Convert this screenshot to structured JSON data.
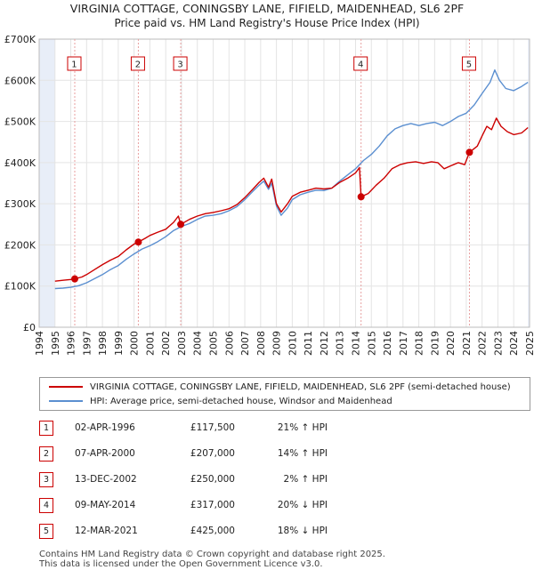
{
  "title_line1": "VIRGINIA COTTAGE, CONINGSBY LANE, FIFIELD, MAIDENHEAD, SL6 2PF",
  "title_line2": "Price paid vs. HM Land Registry's House Price Index (HPI)",
  "chart_data": {
    "type": "line",
    "title": "VIRGINIA COTTAGE, CONINGSBY LANE, FIFIELD, MAIDENHEAD, SL6 2PF",
    "subtitle": "Price paid vs. HM Land Registry's House Price Index (HPI)",
    "xlim": [
      1994,
      2025
    ],
    "ylim": [
      0,
      700000
    ],
    "ytick_labels": [
      "£0",
      "£100K",
      "£200K",
      "£300K",
      "£400K",
      "£500K",
      "£600K",
      "£700K"
    ],
    "yticks": [
      0,
      100000,
      200000,
      300000,
      400000,
      500000,
      600000,
      700000
    ],
    "xtick_labels": [
      "1994",
      "1995",
      "1996",
      "1997",
      "1998",
      "1999",
      "2000",
      "2001",
      "2002",
      "2003",
      "2004",
      "2005",
      "2006",
      "2007",
      "2008",
      "2009",
      "2010",
      "2011",
      "2012",
      "2013",
      "2014",
      "2015",
      "2016",
      "2017",
      "2018",
      "2019",
      "2020",
      "2021",
      "2022",
      "2023",
      "2024",
      "2025"
    ],
    "colors": {
      "property": "#cc0000",
      "hpi": "#5b8fd0",
      "marker_line": "#e8a0a0",
      "shade": "#e8eef8"
    },
    "series": [
      {
        "name": "VIRGINIA COTTAGE, CONINGSBY LANE, FIFIELD, MAIDENHEAD, SL6 2PF (semi-detached house)",
        "points": [
          [
            1995.0,
            112000
          ],
          [
            1995.5,
            114000
          ],
          [
            1996.0,
            116000
          ],
          [
            1996.25,
            117500
          ],
          [
            1996.7,
            122000
          ],
          [
            1997.0,
            128000
          ],
          [
            1997.5,
            140000
          ],
          [
            1998.0,
            152000
          ],
          [
            1998.5,
            163000
          ],
          [
            1999.0,
            172000
          ],
          [
            1999.5,
            188000
          ],
          [
            2000.0,
            202000
          ],
          [
            2000.27,
            207000
          ],
          [
            2000.7,
            216000
          ],
          [
            2001.0,
            223000
          ],
          [
            2001.5,
            231000
          ],
          [
            2002.0,
            238000
          ],
          [
            2002.5,
            255000
          ],
          [
            2002.8,
            270000
          ],
          [
            2002.95,
            250000
          ],
          [
            2003.5,
            262000
          ],
          [
            2004.0,
            270000
          ],
          [
            2004.5,
            276000
          ],
          [
            2005.0,
            279000
          ],
          [
            2005.5,
            283000
          ],
          [
            2006.0,
            288000
          ],
          [
            2006.5,
            298000
          ],
          [
            2007.0,
            315000
          ],
          [
            2007.5,
            335000
          ],
          [
            2007.9,
            352000
          ],
          [
            2008.2,
            362000
          ],
          [
            2008.5,
            340000
          ],
          [
            2008.7,
            360000
          ],
          [
            2009.0,
            300000
          ],
          [
            2009.3,
            280000
          ],
          [
            2009.7,
            300000
          ],
          [
            2010.0,
            318000
          ],
          [
            2010.5,
            328000
          ],
          [
            2011.0,
            333000
          ],
          [
            2011.5,
            338000
          ],
          [
            2012.0,
            336000
          ],
          [
            2012.5,
            338000
          ],
          [
            2013.0,
            352000
          ],
          [
            2013.5,
            362000
          ],
          [
            2014.0,
            375000
          ],
          [
            2014.25,
            388000
          ],
          [
            2014.35,
            317000
          ],
          [
            2014.8,
            325000
          ],
          [
            2015.3,
            345000
          ],
          [
            2015.8,
            362000
          ],
          [
            2016.3,
            385000
          ],
          [
            2016.8,
            395000
          ],
          [
            2017.3,
            400000
          ],
          [
            2017.8,
            402000
          ],
          [
            2018.3,
            398000
          ],
          [
            2018.8,
            402000
          ],
          [
            2019.2,
            400000
          ],
          [
            2019.6,
            385000
          ],
          [
            2020.0,
            392000
          ],
          [
            2020.5,
            400000
          ],
          [
            2020.9,
            395000
          ],
          [
            2021.2,
            425000
          ],
          [
            2021.7,
            440000
          ],
          [
            2022.0,
            465000
          ],
          [
            2022.3,
            488000
          ],
          [
            2022.6,
            480000
          ],
          [
            2022.9,
            508000
          ],
          [
            2023.2,
            488000
          ],
          [
            2023.6,
            475000
          ],
          [
            2024.0,
            468000
          ],
          [
            2024.5,
            472000
          ],
          [
            2024.9,
            485000
          ]
        ]
      },
      {
        "name": "HPI: Average price, semi-detached house, Windsor and Maidenhead",
        "points": [
          [
            1995.0,
            94000
          ],
          [
            1995.5,
            95000
          ],
          [
            1996.0,
            97000
          ],
          [
            1996.5,
            101000
          ],
          [
            1997.0,
            108000
          ],
          [
            1997.5,
            118000
          ],
          [
            1998.0,
            128000
          ],
          [
            1998.5,
            140000
          ],
          [
            1999.0,
            150000
          ],
          [
            1999.5,
            165000
          ],
          [
            2000.0,
            178000
          ],
          [
            2000.5,
            190000
          ],
          [
            2001.0,
            198000
          ],
          [
            2001.5,
            208000
          ],
          [
            2002.0,
            220000
          ],
          [
            2002.5,
            235000
          ],
          [
            2003.0,
            245000
          ],
          [
            2003.5,
            252000
          ],
          [
            2004.0,
            262000
          ],
          [
            2004.5,
            270000
          ],
          [
            2005.0,
            272000
          ],
          [
            2005.5,
            276000
          ],
          [
            2006.0,
            283000
          ],
          [
            2006.5,
            293000
          ],
          [
            2007.0,
            310000
          ],
          [
            2007.5,
            330000
          ],
          [
            2007.9,
            345000
          ],
          [
            2008.2,
            355000
          ],
          [
            2008.5,
            335000
          ],
          [
            2008.7,
            350000
          ],
          [
            2009.0,
            295000
          ],
          [
            2009.3,
            272000
          ],
          [
            2009.7,
            290000
          ],
          [
            2010.0,
            310000
          ],
          [
            2010.5,
            322000
          ],
          [
            2011.0,
            328000
          ],
          [
            2011.5,
            333000
          ],
          [
            2012.0,
            332000
          ],
          [
            2012.5,
            338000
          ],
          [
            2013.0,
            355000
          ],
          [
            2013.5,
            370000
          ],
          [
            2014.0,
            385000
          ],
          [
            2014.5,
            405000
          ],
          [
            2015.0,
            420000
          ],
          [
            2015.5,
            440000
          ],
          [
            2016.0,
            465000
          ],
          [
            2016.5,
            482000
          ],
          [
            2017.0,
            490000
          ],
          [
            2017.5,
            495000
          ],
          [
            2018.0,
            490000
          ],
          [
            2018.5,
            495000
          ],
          [
            2019.0,
            498000
          ],
          [
            2019.5,
            490000
          ],
          [
            2020.0,
            500000
          ],
          [
            2020.5,
            512000
          ],
          [
            2021.0,
            520000
          ],
          [
            2021.5,
            540000
          ],
          [
            2022.0,
            568000
          ],
          [
            2022.5,
            595000
          ],
          [
            2022.8,
            625000
          ],
          [
            2023.1,
            600000
          ],
          [
            2023.5,
            580000
          ],
          [
            2024.0,
            575000
          ],
          [
            2024.5,
            585000
          ],
          [
            2024.9,
            595000
          ]
        ]
      }
    ],
    "sales": [
      {
        "label": "1",
        "date": "02-APR-1996",
        "x": 1996.25,
        "price": 117500,
        "price_text": "£117,500",
        "hpi_text": "21% ↑ HPI"
      },
      {
        "label": "2",
        "date": "07-APR-2000",
        "x": 2000.27,
        "price": 207000,
        "price_text": "£207,000",
        "hpi_text": "14% ↑ HPI"
      },
      {
        "label": "3",
        "date": "13-DEC-2002",
        "x": 2002.95,
        "price": 250000,
        "price_text": "£250,000",
        "hpi_text": "2% ↑ HPI"
      },
      {
        "label": "4",
        "date": "09-MAY-2014",
        "x": 2014.35,
        "price": 317000,
        "price_text": "£317,000",
        "hpi_text": "20% ↓ HPI"
      },
      {
        "label": "5",
        "date": "12-MAR-2021",
        "x": 2021.2,
        "price": 425000,
        "price_text": "£425,000",
        "hpi_text": "18% ↓ HPI"
      }
    ],
    "shaded_ranges": [
      [
        1994,
        1995
      ],
      [
        2024.9,
        2025
      ]
    ]
  },
  "legend": {
    "property_label": "VIRGINIA COTTAGE, CONINGSBY LANE, FIFIELD, MAIDENHEAD, SL6 2PF (semi-detached house)",
    "hpi_label": "HPI: Average price, semi-detached house, Windsor and Maidenhead"
  },
  "footer_line1": "Contains HM Land Registry data © Crown copyright and database right 2025.",
  "footer_line2": "This data is licensed under the Open Government Licence v3.0."
}
